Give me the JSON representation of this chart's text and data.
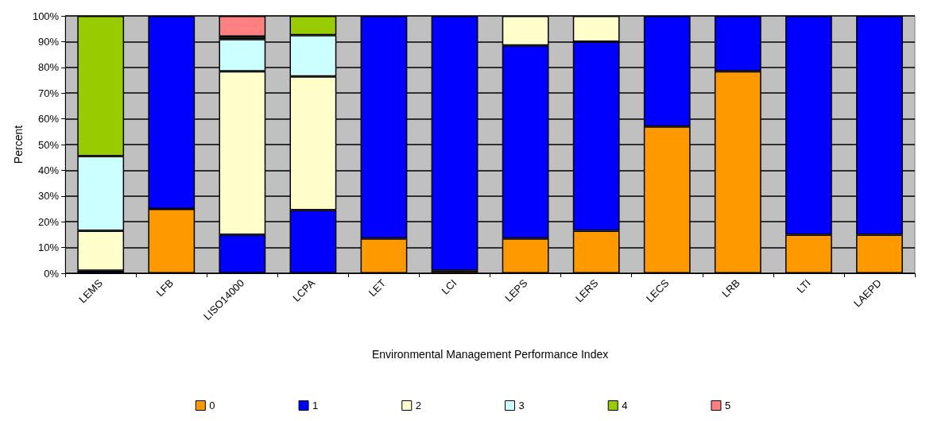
{
  "chart_data": {
    "type": "bar",
    "stacked": true,
    "xlabel": "Environmental Management Performance Index",
    "ylabel": "Percent",
    "categories": [
      "LEMS",
      "LFB",
      "LISO14000",
      "LCPA",
      "LET",
      "LCI",
      "LEPS",
      "LERS",
      "LECS",
      "LRB",
      "LTI",
      "LAEPD"
    ],
    "series": [
      {
        "name": "0",
        "color": "#ff9900",
        "values": [
          0,
          25,
          0,
          0,
          13.5,
          1,
          13.5,
          16.5,
          57,
          78.5,
          15,
          15
        ]
      },
      {
        "name": "1",
        "color": "#0000ff",
        "values": [
          1,
          75,
          15,
          24.5,
          86.5,
          99,
          75,
          73.5,
          43,
          21.5,
          85,
          85
        ]
      },
      {
        "name": "2",
        "color": "#ffffcc",
        "values": [
          15.5,
          0,
          63.5,
          52,
          0,
          0,
          11.5,
          10,
          0,
          0,
          0,
          0
        ]
      },
      {
        "name": "3",
        "color": "#ccffff",
        "values": [
          29,
          0,
          12.5,
          16,
          0,
          0,
          0,
          0,
          0,
          0,
          0,
          0
        ]
      },
      {
        "name": "4",
        "color": "#99cc00",
        "values": [
          54.5,
          0,
          1,
          7.5,
          0,
          0,
          0,
          0,
          0,
          0,
          0,
          0
        ]
      },
      {
        "name": "5",
        "color": "#ff8080",
        "values": [
          0,
          0,
          8,
          0,
          0,
          0,
          0,
          0,
          0,
          0,
          0,
          0
        ]
      }
    ],
    "ylim": [
      0,
      100
    ],
    "yticks": [
      {
        "value": 0,
        "label": "0%"
      },
      {
        "value": 10,
        "label": "10%"
      },
      {
        "value": 20,
        "label": "20%"
      },
      {
        "value": 30,
        "label": "30%"
      },
      {
        "value": 40,
        "label": "40%"
      },
      {
        "value": 50,
        "label": "50%"
      },
      {
        "value": 60,
        "label": "60%"
      },
      {
        "value": 70,
        "label": "70%"
      },
      {
        "value": 80,
        "label": "80%"
      },
      {
        "value": 90,
        "label": "90%"
      },
      {
        "value": 100,
        "label": "100%"
      }
    ],
    "grid": "y",
    "legend": "bottom"
  }
}
